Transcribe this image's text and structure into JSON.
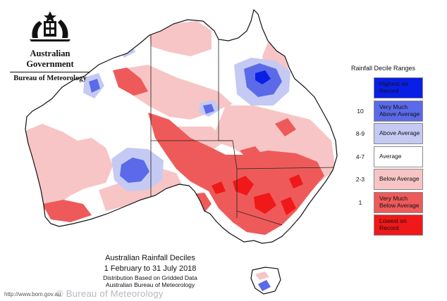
{
  "header": {
    "government": "Australian Government",
    "bureau": "Bureau of Meteorology"
  },
  "legend": {
    "title": "Rainfall Decile Ranges",
    "items": [
      {
        "range": "",
        "label": "Highest on Record",
        "color": "#0a1fe6"
      },
      {
        "range": "10",
        "label": "Very Much Above Average",
        "color": "#5b6ae8"
      },
      {
        "range": "8-9",
        "label": "Above Average",
        "color": "#c4caf3"
      },
      {
        "range": "4-7",
        "label": "Average",
        "color": "#ffffff"
      },
      {
        "range": "2-3",
        "label": "Below Average",
        "color": "#f7c5c5"
      },
      {
        "range": "1",
        "label": "Very Much Below Average",
        "color": "#ee5a5a"
      },
      {
        "range": "",
        "label": "Lowest on Record",
        "color": "#f01818"
      }
    ]
  },
  "caption": {
    "title": "Australian Rainfall Deciles",
    "period": "1 February to 31 July 2018",
    "basis": "Distribution Based on Gridded Data",
    "source": "Australian Bureau of Meteorology"
  },
  "footer": {
    "url": "http://www.bom.gov.au",
    "watermark": "© Bureau of Meteorology"
  }
}
